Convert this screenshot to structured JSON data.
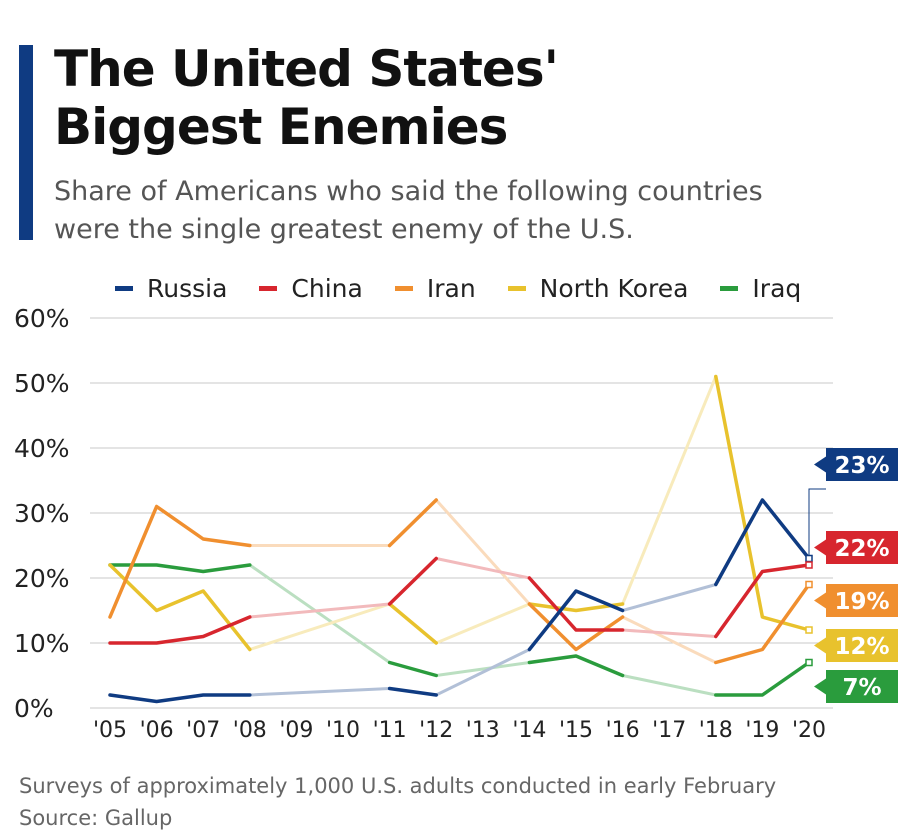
{
  "header": {
    "title_line1": "The United States'",
    "title_line2": "Biggest Enemies",
    "subtitle_line1": "Share of Americans who said the following countries",
    "subtitle_line2": "were the single greatest enemy of the U.S."
  },
  "footer": {
    "note": "Surveys of approximately 1,000 U.S. adults conducted in early February",
    "source": "Source: Gallup"
  },
  "colors": {
    "accent": "#0f3b82",
    "grid": "#c9c9c9",
    "axis_text": "#222222"
  },
  "chart_data": {
    "type": "line",
    "title": "The United States' Biggest Enemies",
    "xlabel": "",
    "ylabel": "",
    "ylim": [
      0,
      60
    ],
    "yticks": [
      0,
      10,
      20,
      30,
      40,
      50,
      60
    ],
    "ytick_labels": [
      "0%",
      "10%",
      "20%",
      "30%",
      "40%",
      "50%",
      "60%"
    ],
    "categories": [
      "'05",
      "'06",
      "'07",
      "'08",
      "'09",
      "'10",
      "'11",
      "'12",
      "'13",
      "'14",
      "'15",
      "'16",
      "'17",
      "'18",
      "'19",
      "'20"
    ],
    "grid": true,
    "legend_position": "top",
    "note": "Faded segments connect survey years with no data",
    "series": [
      {
        "name": "Russia",
        "color": "#0f3b82",
        "values": [
          2,
          1,
          2,
          2,
          null,
          null,
          3,
          2,
          null,
          9,
          18,
          15,
          null,
          19,
          32,
          23
        ],
        "end_label": "23%"
      },
      {
        "name": "China",
        "color": "#d7262e",
        "values": [
          10,
          10,
          11,
          14,
          null,
          null,
          16,
          23,
          null,
          20,
          12,
          12,
          null,
          11,
          21,
          22
        ],
        "end_label": "22%"
      },
      {
        "name": "Iran",
        "color": "#f08f2f",
        "values": [
          14,
          31,
          26,
          25,
          null,
          null,
          25,
          32,
          null,
          16,
          9,
          14,
          null,
          7,
          9,
          19
        ],
        "end_label": "19%"
      },
      {
        "name": "North Korea",
        "color": "#e8c22d",
        "values": [
          22,
          15,
          18,
          9,
          null,
          null,
          16,
          10,
          null,
          16,
          15,
          16,
          null,
          51,
          14,
          12
        ],
        "end_label": "12%"
      },
      {
        "name": "Iraq",
        "color": "#2a9c3d",
        "values": [
          22,
          22,
          21,
          22,
          null,
          null,
          7,
          5,
          null,
          7,
          8,
          5,
          null,
          2,
          2,
          7
        ],
        "end_label": "7%"
      }
    ]
  }
}
